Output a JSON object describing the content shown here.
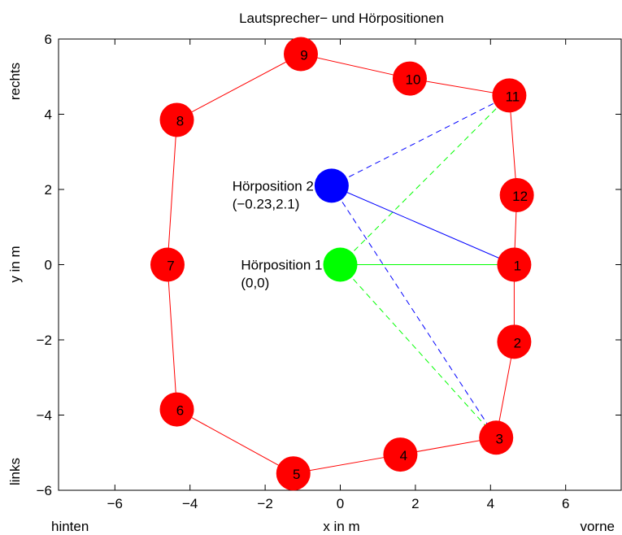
{
  "chart_data": {
    "type": "scatter",
    "title": "Lautsprecher− und Hörpositionen",
    "xlabel": "x in m",
    "ylabel": "y in m",
    "x_side_labels": {
      "left": "hinten",
      "right": "vorne"
    },
    "y_side_labels": {
      "top": "rechts",
      "bottom": "links"
    },
    "xlim": [
      -7.5,
      7.5
    ],
    "ylim": [
      -6,
      6
    ],
    "xticks": [
      -6,
      -4,
      -2,
      0,
      2,
      4,
      6
    ],
    "yticks": [
      -6,
      -4,
      -2,
      0,
      2,
      4,
      6
    ],
    "xtick_labels": [
      "−6",
      "−4",
      "−2",
      "0",
      "2",
      "4",
      "6"
    ],
    "ytick_labels": [
      "−6",
      "−4",
      "−2",
      "0",
      "2",
      "4",
      "6"
    ],
    "grid": false,
    "speakers": [
      {
        "label": "1",
        "x": 4.63,
        "y": 0.0
      },
      {
        "label": "2",
        "x": 4.63,
        "y": -2.05
      },
      {
        "label": "3",
        "x": 4.15,
        "y": -4.6
      },
      {
        "label": "4",
        "x": 1.6,
        "y": -5.05
      },
      {
        "label": "5",
        "x": -1.25,
        "y": -5.55
      },
      {
        "label": "6",
        "x": -4.35,
        "y": -3.85
      },
      {
        "label": "7",
        "x": -4.6,
        "y": 0.0
      },
      {
        "label": "8",
        "x": -4.35,
        "y": 3.85
      },
      {
        "label": "9",
        "x": -1.05,
        "y": 5.6
      },
      {
        "label": "10",
        "x": 1.85,
        "y": 4.95
      },
      {
        "label": "11",
        "x": 4.5,
        "y": 4.5
      },
      {
        "label": "12",
        "x": 4.7,
        "y": 1.85
      }
    ],
    "listeners": [
      {
        "name": "Hörposition 1",
        "coords": "(0,0)",
        "x": 0.0,
        "y": 0.0,
        "color": "#00ff00"
      },
      {
        "name": "Hörposition 2",
        "coords": "(−0.23,2.1)",
        "x": -0.23,
        "y": 2.1,
        "color": "#0000ff"
      }
    ],
    "connections": [
      {
        "from": 0,
        "to": 1,
        "style": "solid"
      },
      {
        "from": 0,
        "to": 11,
        "style": "dashed"
      },
      {
        "from": 0,
        "to": 3,
        "style": "dashed"
      },
      {
        "from": 1,
        "to": 1,
        "style": "solid"
      },
      {
        "from": 1,
        "to": 11,
        "style": "dashed"
      },
      {
        "from": 1,
        "to": 3,
        "style": "dashed"
      }
    ],
    "colors": {
      "speaker": "#ff0000",
      "speaker_outline": "#ff0000",
      "listener1": "#00ff00",
      "listener2": "#0000ff",
      "axis": "#000000"
    }
  }
}
